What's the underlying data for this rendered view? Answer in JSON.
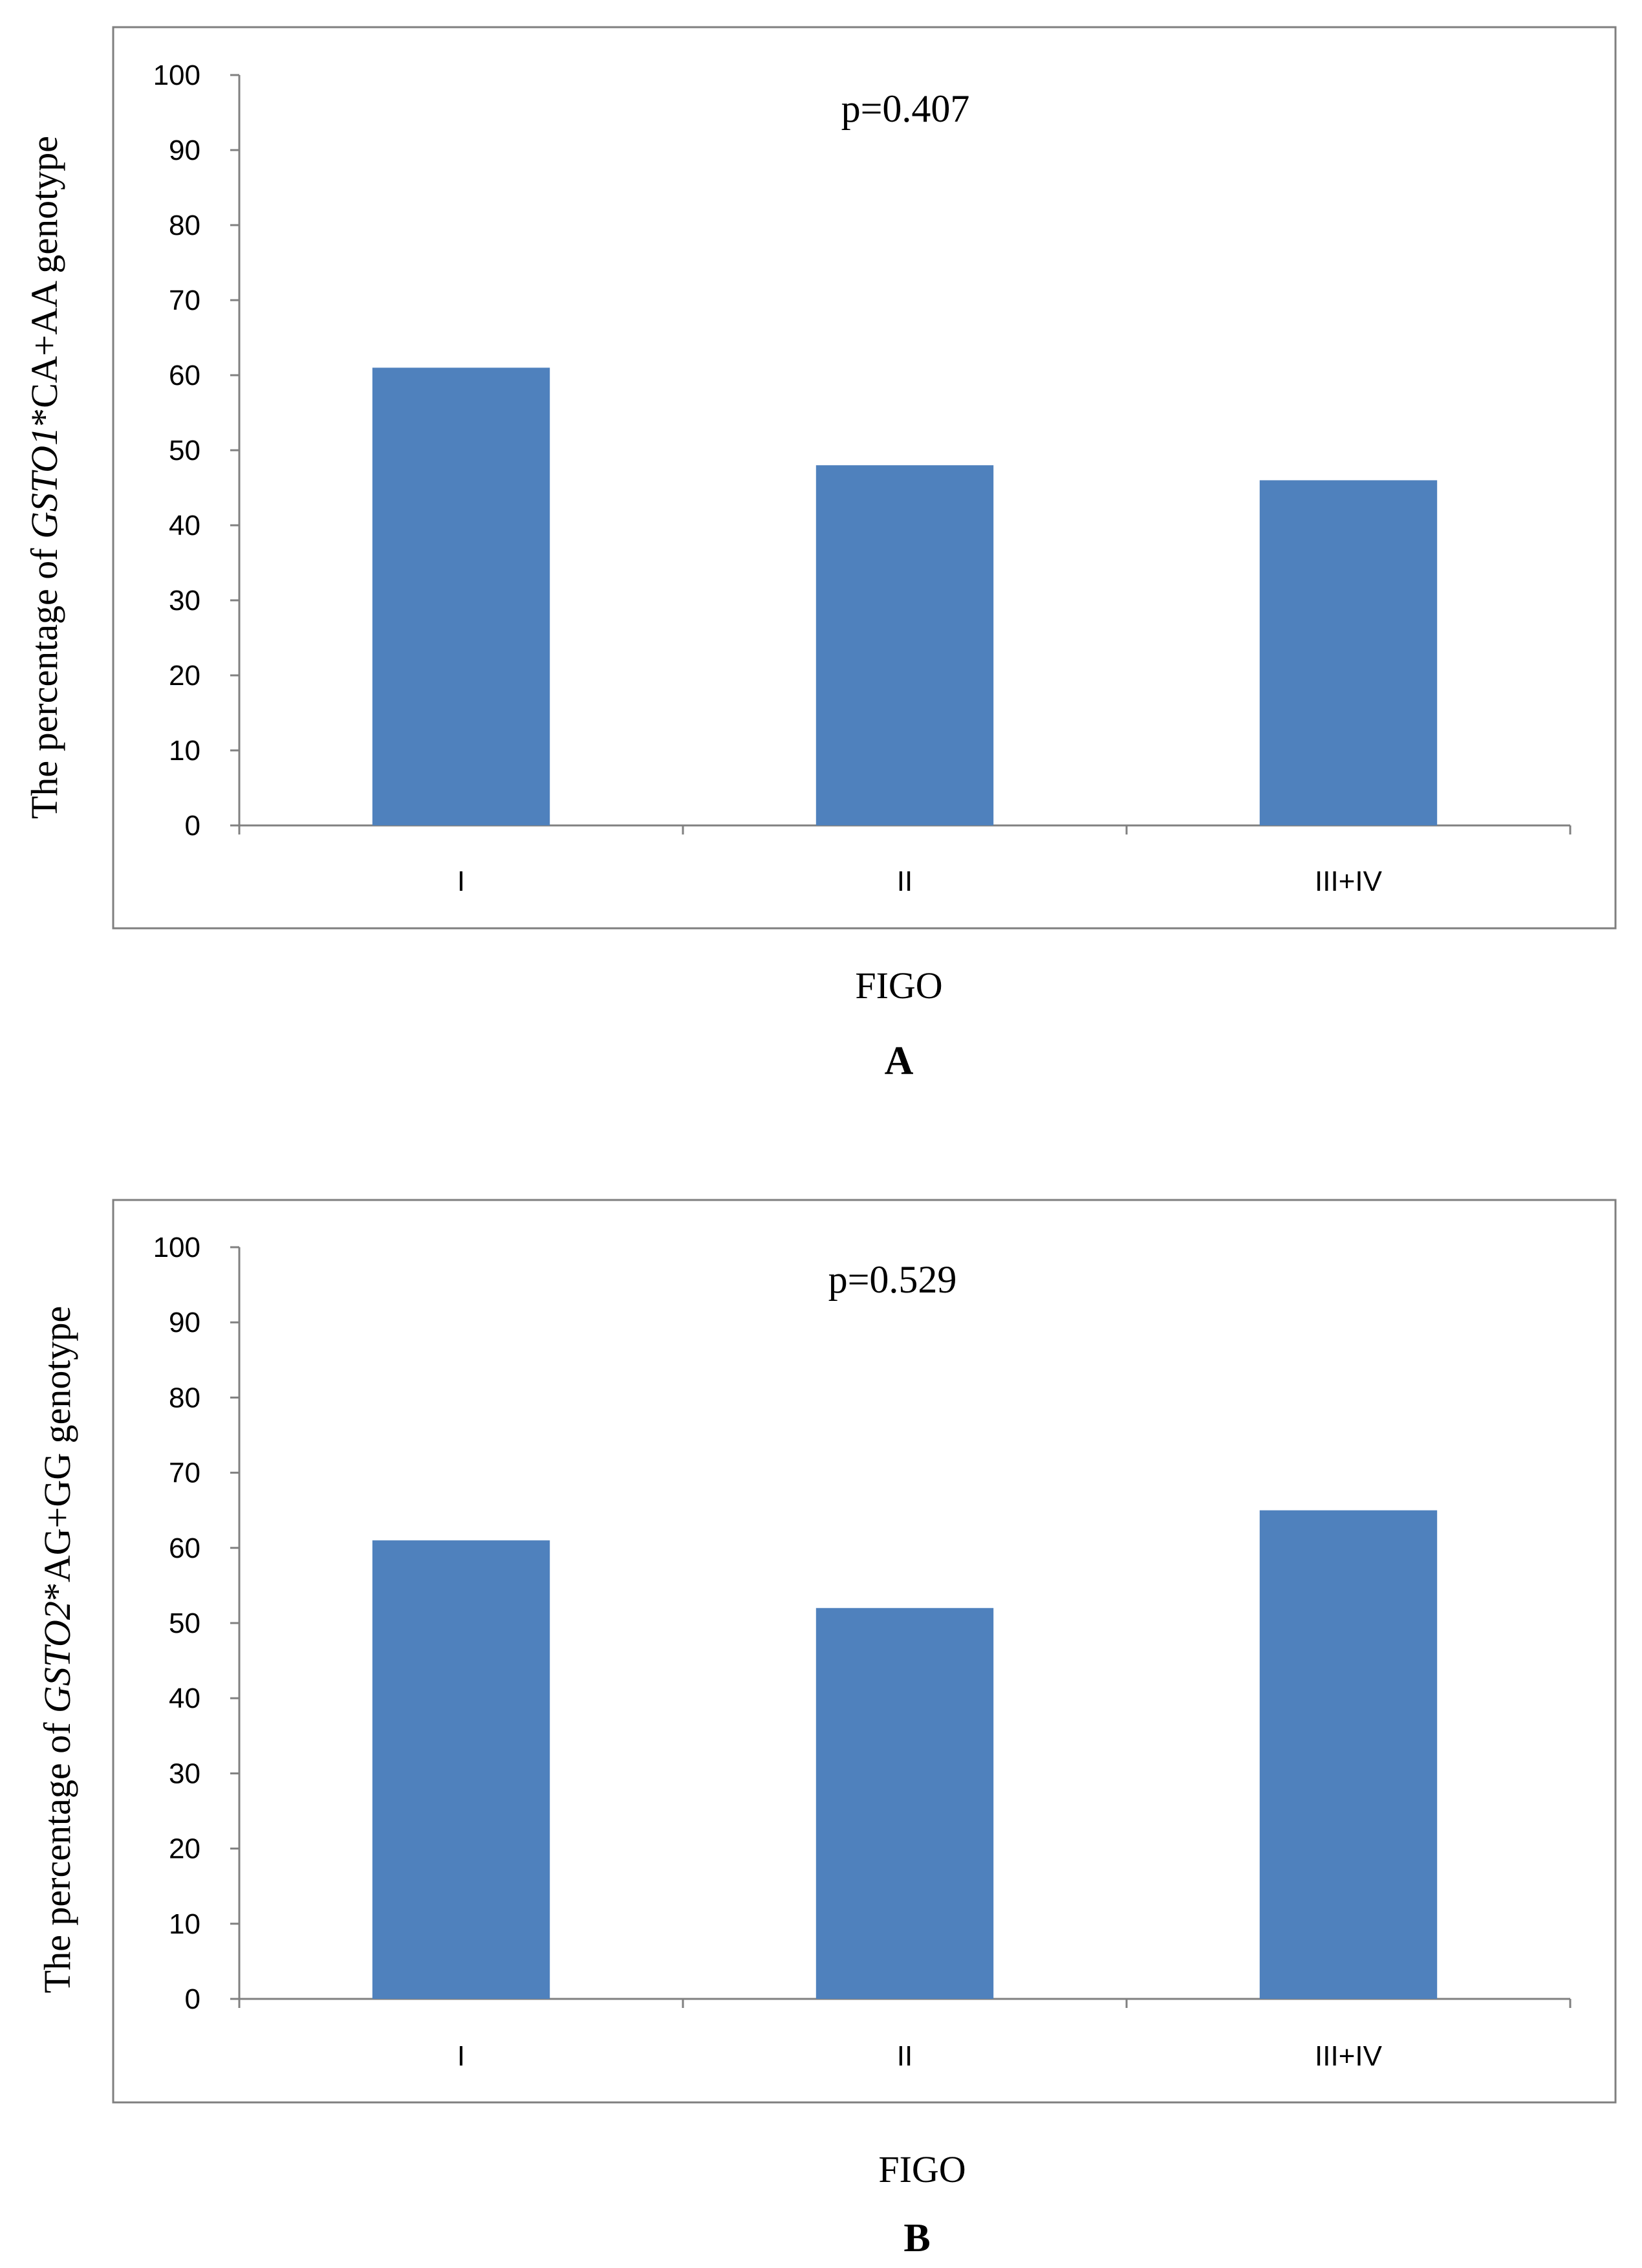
{
  "figure": {
    "panels": [
      "A",
      "B"
    ]
  },
  "chart_data": [
    {
      "type": "bar",
      "panel": "A",
      "categories": [
        "I",
        "II",
        "III+IV"
      ],
      "values": [
        61,
        48,
        46
      ],
      "ylim": [
        0,
        100
      ],
      "yticks": [
        0,
        10,
        20,
        30,
        40,
        50,
        60,
        70,
        80,
        90,
        100
      ],
      "xlabel": "FIGO",
      "ylabel_parts": [
        "The percentage of ",
        "GSTO1",
        "*CA+AA genotype"
      ],
      "annotation": "p=0.407",
      "bar_color": "#4f81bd",
      "grid": false,
      "legend": "none"
    },
    {
      "type": "bar",
      "panel": "B",
      "categories": [
        "I",
        "II",
        "III+IV"
      ],
      "values": [
        61,
        52,
        65
      ],
      "ylim": [
        0,
        100
      ],
      "yticks": [
        0,
        10,
        20,
        30,
        40,
        50,
        60,
        70,
        80,
        90,
        100
      ],
      "xlabel": "FIGO",
      "ylabel_parts": [
        "The percentage of ",
        "GSTO2",
        "*AG+GG genotype"
      ],
      "annotation": "p=0.529",
      "bar_color": "#4f81bd",
      "grid": false,
      "legend": "none"
    }
  ]
}
